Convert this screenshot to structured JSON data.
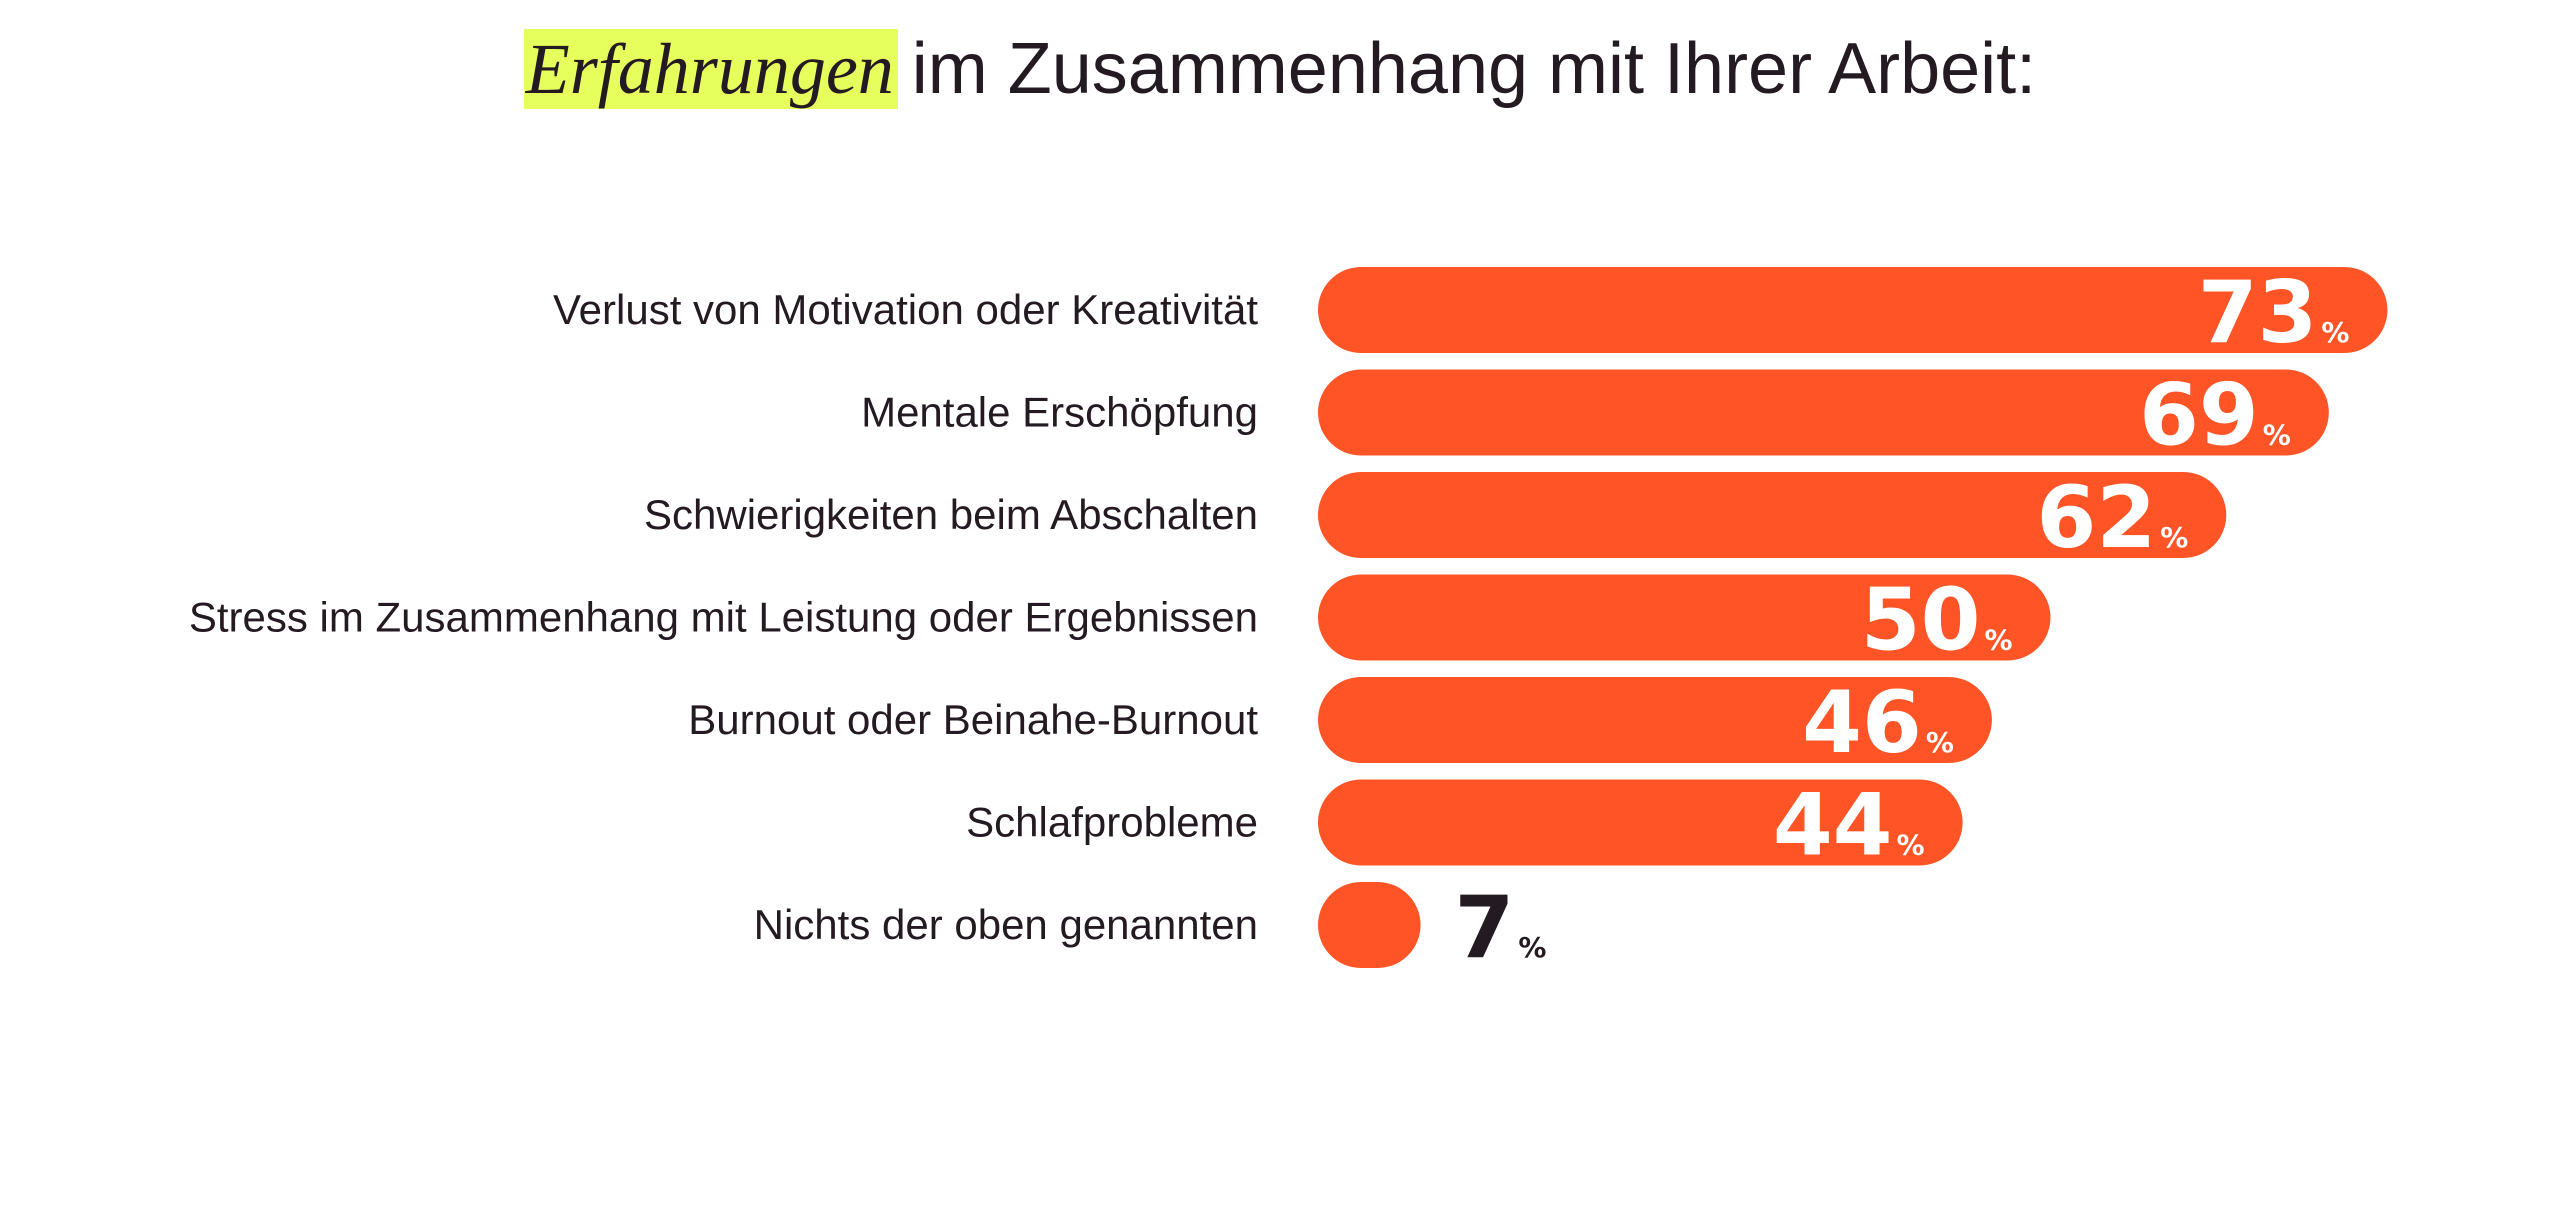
{
  "title": {
    "highlight": "Erfahrungen",
    "rest": "im Zusammenhang mit Ihrer Arbeit:"
  },
  "colors": {
    "bar": "#ff5426",
    "highlight": "#e6ff5c",
    "text": "#241a22",
    "value_inside": "#ffffff"
  },
  "chart_data": {
    "type": "bar",
    "orientation": "horizontal",
    "categories": [
      "Verlust von Motivation oder Kreativität",
      "Mentale Erschöpfung",
      "Schwierigkeiten beim Abschalten",
      "Stress im Zusammenhang mit Leistung oder Ergebnissen",
      "Burnout oder Beinahe-Burnout",
      "Schlafprobleme",
      "Nichts der oben genannten"
    ],
    "values": [
      73,
      69,
      62,
      50,
      46,
      44,
      7
    ],
    "value_suffix": "%",
    "title": "Erfahrungen im Zusammenhang mit Ihrer Arbeit:",
    "xlabel": "",
    "ylabel": "",
    "grid": false,
    "legend": "none"
  }
}
